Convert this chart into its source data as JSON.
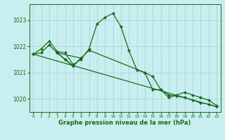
{
  "title": "Graphe pression niveau de la mer (hPa)",
  "background_color": "#c8eef0",
  "grid_color": "#b0d8dc",
  "line_color": "#1a6b1a",
  "marker_color": "#1a6b1a",
  "xlim": [
    -0.5,
    23.5
  ],
  "ylim": [
    1019.5,
    1023.6
  ],
  "yticks": [
    1020,
    1021,
    1022,
    1023
  ],
  "xticks": [
    0,
    1,
    2,
    3,
    4,
    5,
    6,
    7,
    8,
    9,
    10,
    11,
    12,
    13,
    14,
    15,
    16,
    17,
    18,
    19,
    20,
    21,
    22,
    23
  ],
  "series1_x": [
    0,
    1,
    2,
    3,
    4,
    5,
    6,
    7,
    8,
    9,
    10,
    11,
    12,
    13,
    14,
    15,
    16,
    17,
    18,
    19,
    20,
    21,
    22,
    23
  ],
  "series1_y": [
    1021.7,
    1021.9,
    1022.2,
    1021.8,
    1021.75,
    1021.3,
    1021.5,
    1021.9,
    1022.85,
    1023.1,
    1023.25,
    1022.75,
    1021.85,
    1021.1,
    1021.0,
    1020.85,
    1020.35,
    1020.15,
    1020.1,
    1020.05,
    1019.95,
    1019.85,
    1019.8,
    1019.7
  ],
  "series2_x": [
    0,
    1,
    2,
    3,
    4,
    5,
    6,
    7,
    14,
    15,
    16,
    17,
    18,
    19,
    20,
    21,
    22,
    23
  ],
  "series2_y": [
    1021.7,
    1021.75,
    1022.05,
    1021.75,
    1021.5,
    1021.25,
    1021.55,
    1021.85,
    1021.0,
    1020.35,
    1020.35,
    1020.05,
    1020.15,
    1020.25,
    1020.15,
    1020.05,
    1019.95,
    1019.75
  ],
  "series3_x": [
    0,
    23
  ],
  "series3_y": [
    1021.7,
    1019.7
  ],
  "series4_x": [
    3,
    4,
    5,
    6,
    3
  ],
  "series4_y": [
    1021.75,
    1021.5,
    1021.25,
    1021.55,
    1021.75
  ]
}
